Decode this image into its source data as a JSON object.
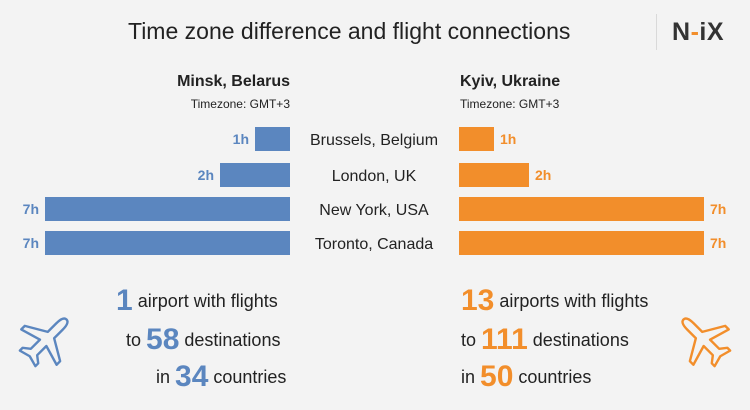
{
  "header": {
    "title": "Time zone difference and flight connections",
    "logo": {
      "part1": "N",
      "part2": "-",
      "part3": "iX"
    }
  },
  "left": {
    "city": "Minsk, Belarus",
    "timezone": "Timezone: GMT+3",
    "color": "#5b86bf",
    "stats": {
      "line1": {
        "number": "1",
        "text": " airport with flights"
      },
      "line2": {
        "prefix": "to ",
        "number": "58",
        "text": " destinations"
      },
      "line3": {
        "prefix": "in ",
        "number": "34",
        "text": " countries"
      }
    }
  },
  "right": {
    "city": "Kyiv, Ukraine",
    "timezone": "Timezone: GMT+3",
    "color": "#f28e2b",
    "stats": {
      "line1": {
        "number": "13",
        "text": " airports with flights"
      },
      "line2": {
        "prefix": "to ",
        "number": "111",
        "text": " destinations"
      },
      "line3": {
        "prefix": "in ",
        "number": "50",
        "text": " countries"
      }
    }
  },
  "icons": {
    "left": "airplane-icon",
    "right": "airplane-icon"
  },
  "chart_data": {
    "type": "bar",
    "orientation": "horizontal",
    "layout": "diverging",
    "categories": [
      "Brussels, Belgium",
      "London, UK",
      "New York, USA",
      "Toronto, Canada"
    ],
    "series": [
      {
        "name": "Minsk, Belarus",
        "values": [
          1,
          2,
          7,
          7
        ],
        "labels": [
          "1h",
          "2h",
          "7h",
          "7h"
        ],
        "color": "#5b86bf",
        "side": "left"
      },
      {
        "name": "Kyiv, Ukraine",
        "values": [
          1,
          2,
          7,
          7
        ],
        "labels": [
          "1h",
          "2h",
          "7h",
          "7h"
        ],
        "color": "#f28e2b",
        "side": "right"
      }
    ],
    "unit": "h",
    "xlim": [
      0,
      7
    ],
    "grid": false
  }
}
